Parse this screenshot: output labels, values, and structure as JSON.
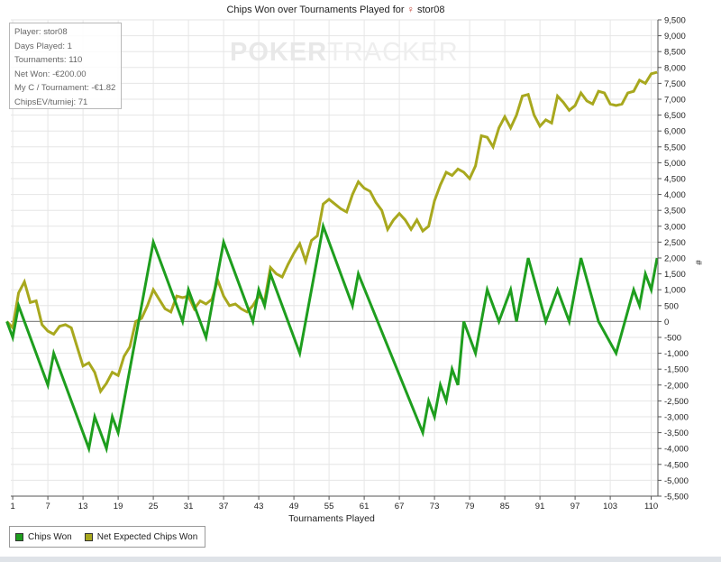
{
  "title": "Chips Won over Tournaments Played for",
  "player_name": "stor08",
  "player_icon": "female-symbol-icon",
  "watermark": {
    "part1": "POKER",
    "part2": "TRACKER"
  },
  "info_box": [
    "Player: stor08",
    "Days Played: 1",
    "Tournaments: 110",
    "Net Won: -€200.00",
    "My C / Tournament: -€1.82",
    "ChipsEV/turniej: 71"
  ],
  "legend": [
    {
      "label": "Chips Won",
      "color": "#1e9e1e"
    },
    {
      "label": "Net Expected Chips Won",
      "color": "#a8a81e"
    }
  ],
  "colors": {
    "grid": "#e6e6e6",
    "axis": "#555555",
    "zero_line": "#8a8a8a"
  },
  "chart_data": {
    "type": "line",
    "title": "Chips Won over Tournaments Played for stor08",
    "xlabel": "Tournaments Played",
    "ylabel": "#",
    "xlim": [
      0,
      110
    ],
    "ylim": [
      -5500,
      9500
    ],
    "y_tick_step": 500,
    "x_ticks": [
      1,
      7,
      13,
      19,
      25,
      31,
      37,
      43,
      49,
      55,
      61,
      67,
      73,
      79,
      85,
      91,
      97,
      103,
      110
    ],
    "y_tick_labels": [
      "9,500",
      "9,000",
      "8,500",
      "8,000",
      "7,500",
      "7,000",
      "6,500",
      "6,000",
      "5,500",
      "5,000",
      "4,500",
      "4,000",
      "3,500",
      "3,000",
      "2,500",
      "2,000",
      "1,500",
      "1,000",
      "500",
      "0",
      "-500",
      "-1,000",
      "-1,500",
      "-2,000",
      "-2,500",
      "-3,000",
      "-3,500",
      "-4,000",
      "-4,500",
      "-5,000",
      "-5,500"
    ],
    "grid": true,
    "legend_position": "bottom-left",
    "series": [
      {
        "name": "Chips Won",
        "color": "#1e9e1e",
        "x": [
          0,
          1,
          2,
          7,
          8,
          14,
          15,
          17,
          18,
          19,
          25,
          30,
          31,
          34,
          37,
          42,
          43,
          44,
          45,
          50,
          54,
          59,
          60,
          71,
          72,
          73,
          74,
          75,
          76,
          77,
          78,
          80,
          82,
          84,
          86,
          87,
          89,
          92,
          94,
          96,
          98,
          101,
          104,
          107,
          108,
          109,
          110,
          111
        ],
        "y": [
          0,
          -500,
          500,
          -2000,
          -1000,
          -4000,
          -3000,
          -4000,
          -3000,
          -3500,
          2500,
          0,
          1000,
          -500,
          2500,
          0,
          1000,
          500,
          1500,
          -1000,
          3000,
          500,
          1500,
          -3500,
          -2500,
          -3000,
          -2000,
          -2500,
          -1500,
          -2000,
          0,
          -1000,
          1000,
          0,
          1000,
          0,
          2000,
          0,
          1000,
          0,
          2000,
          0,
          -1000,
          1000,
          500,
          1500,
          1000,
          2000
        ]
      },
      {
        "name": "Net Expected Chips Won",
        "color": "#a8a81e",
        "x": [
          0,
          1,
          2,
          3,
          4,
          5,
          6,
          7,
          8,
          9,
          10,
          11,
          12,
          13,
          14,
          15,
          16,
          17,
          18,
          19,
          20,
          21,
          22,
          23,
          24,
          25,
          26,
          27,
          28,
          29,
          30,
          31,
          32,
          33,
          34,
          35,
          36,
          37,
          38,
          39,
          40,
          41,
          42,
          43,
          44,
          45,
          46,
          47,
          48,
          49,
          50,
          51,
          52,
          53,
          54,
          55,
          56,
          57,
          58,
          59,
          60,
          61,
          62,
          63,
          64,
          65,
          66,
          67,
          68,
          69,
          70,
          71,
          72,
          73,
          74,
          75,
          76,
          77,
          78,
          79,
          80,
          81,
          82,
          83,
          84,
          85,
          86,
          87,
          88,
          89,
          90,
          91,
          92,
          93,
          94,
          95,
          96,
          97,
          98,
          99,
          100,
          101,
          102,
          103,
          104,
          105,
          106,
          107,
          108,
          109,
          110,
          111
        ],
        "y": [
          0,
          -200,
          900,
          1250,
          600,
          650,
          -100,
          -300,
          -400,
          -150,
          -100,
          -200,
          -800,
          -1400,
          -1300,
          -1600,
          -2200,
          -1950,
          -1600,
          -1700,
          -1100,
          -800,
          0,
          100,
          500,
          1000,
          700,
          400,
          300,
          800,
          750,
          800,
          400,
          650,
          550,
          700,
          1300,
          800,
          500,
          550,
          400,
          300,
          500,
          800,
          650,
          1700,
          1500,
          1400,
          1800,
          2150,
          2450,
          1900,
          2550,
          2700,
          3700,
          3850,
          3700,
          3550,
          3450,
          4000,
          4400,
          4200,
          4100,
          3750,
          3500,
          2900,
          3200,
          3400,
          3200,
          2900,
          3200,
          2850,
          3000,
          3800,
          4300,
          4700,
          4600,
          4800,
          4700,
          4500,
          4900,
          5850,
          5800,
          5500,
          6100,
          6450,
          6100,
          6500,
          7100,
          7150,
          6500,
          6150,
          6350,
          6250,
          7100,
          6900,
          6650,
          6800,
          7200,
          6950,
          6850,
          7250,
          7200,
          6850,
          6800,
          6850,
          7200,
          7250,
          7600,
          7500,
          7800,
          7850
        ]
      }
    ]
  }
}
